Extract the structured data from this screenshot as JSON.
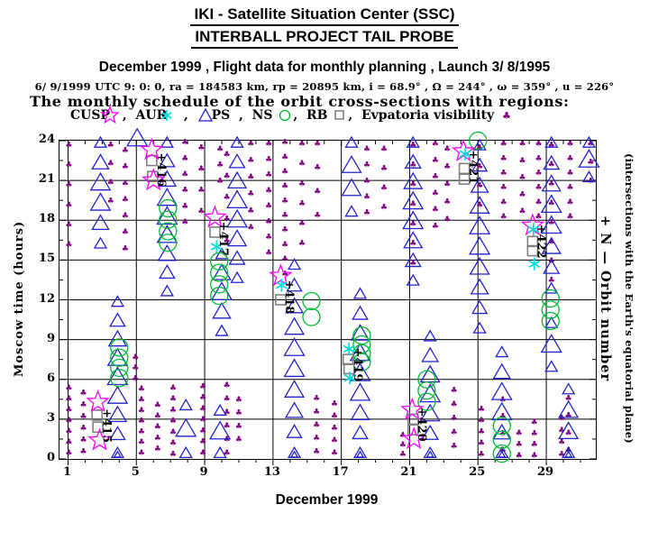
{
  "header": {
    "line1": "IKI - Satellite Situation Center (SSC)",
    "line2": "INTERBALL PROJECT TAIL PROBE",
    "line3": "December 1999 ,  Flight data for monthly planning ,  Launch  3/ 8/1995",
    "params": "6/ 9/1999 UTC  9: 0: 0, ra = 184583 km, rp =  20895 km, i = 68.9° , Ω = 244° , ω = 359° , u = 226°"
  },
  "legend": {
    "items": [
      {
        "label": "CUSP",
        "marker": "star",
        "color": "#ff00ff",
        "sep": " ,  ",
        "marker_first": false
      },
      {
        "label": "AUR",
        "marker": "asterisk",
        "color": "#00dddd",
        "sep": "  ,  ",
        "marker_first": false
      },
      {
        "label": "PS",
        "marker": "triangle",
        "color": "#2222cc",
        "sep": "  ,  ",
        "marker_first": true
      },
      {
        "label": "NS ",
        "marker": "circle",
        "color": "#00bb33",
        "sep": ",  ",
        "marker_first": false
      },
      {
        "label": "RB ",
        "marker": "square",
        "color": "#808080",
        "sep": ",  ",
        "marker_first": false
      },
      {
        "label": "Evpatoria visibility ",
        "marker": "club",
        "color": "#800080",
        "sep": "",
        "marker_first": false
      }
    ]
  },
  "plot": {
    "x_label": "December 1999",
    "y_label": "Moscow time (hours)",
    "right_label_inner": "+ N — Orbit number",
    "right_label_outer": "(intersections with the Earth's equatorial plane)"
  },
  "chart_data": {
    "type": "scatter",
    "title": "The monthly schedule of the orbit cross-sections with regions:",
    "xlabel": "December 1999",
    "ylabel": "Moscow time (hours)",
    "xlim": [
      0.5,
      31.9
    ],
    "ylim": [
      0,
      24
    ],
    "x_major_ticks": [
      1,
      5,
      9,
      13,
      17,
      21,
      25,
      29
    ],
    "x_minor_step": 1,
    "y_major_ticks": [
      0,
      3,
      6,
      9,
      12,
      15,
      18,
      21,
      24
    ],
    "y_minor_step": 1.5,
    "grid": true,
    "series": [
      {
        "name": "PS",
        "marker": "triangle",
        "color": "#2222cc",
        "columns": [
          [
            2.9,
            23.8,
            16.2,
            6,
            0
          ],
          [
            3.9,
            11.8,
            0.4,
            9,
            1
          ],
          [
            5.05,
            24.1,
            24.1,
            1,
            0
          ],
          [
            6.8,
            23.8,
            12.6,
            9,
            0
          ],
          [
            7.9,
            4.0,
            0.4,
            3,
            0
          ],
          [
            10.0,
            15.4,
            9.6,
            5,
            0
          ],
          [
            9.9,
            3.6,
            0.4,
            3,
            0
          ],
          [
            10.9,
            23.8,
            13.6,
            8,
            0
          ],
          [
            14.25,
            14.6,
            0.4,
            10,
            1
          ],
          [
            17.6,
            23.8,
            18.6,
            4,
            0
          ],
          [
            18.1,
            12.4,
            0.4,
            9,
            1
          ],
          [
            21.2,
            23.8,
            13.4,
            8,
            0
          ],
          [
            22.2,
            9.2,
            0.4,
            7,
            1
          ],
          [
            25.1,
            23.6,
            9.8,
            10,
            0
          ],
          [
            26.4,
            8.0,
            0.4,
            6,
            1
          ],
          [
            29.3,
            23.8,
            12.8,
            8,
            0
          ],
          [
            29.3,
            10.2,
            6.9,
            3,
            0
          ],
          [
            30.3,
            5.2,
            0.4,
            4,
            1
          ],
          [
            31.5,
            23.8,
            21.2,
            3,
            0
          ]
        ]
      },
      {
        "name": "NS",
        "marker": "circle",
        "color": "#00bb33",
        "stacks": [
          [
            4.0,
            8.4,
            6.1,
            4
          ],
          [
            6.85,
            18.9,
            16.3,
            4
          ],
          [
            9.85,
            14.9,
            12.3,
            4
          ],
          [
            15.25,
            11.9,
            10.7,
            2
          ],
          [
            18.2,
            9.3,
            7.3,
            4
          ],
          [
            22.0,
            6.0,
            4.3,
            3
          ],
          [
            25.0,
            24.0,
            23.7,
            1
          ],
          [
            26.4,
            2.5,
            0.4,
            3
          ],
          [
            29.25,
            12.1,
            10.4,
            3
          ]
        ]
      },
      {
        "name": "RB",
        "marker": "square",
        "color": "#808080",
        "points": [
          [
            2.7,
            3.3
          ],
          [
            2.75,
            2.4
          ],
          [
            5.9,
            22.5
          ],
          [
            5.95,
            21.3
          ],
          [
            9.6,
            17.1
          ],
          [
            13.45,
            12.0
          ],
          [
            17.4,
            7.5
          ],
          [
            17.45,
            6.8
          ],
          [
            21.2,
            3.0
          ],
          [
            21.2,
            2.2
          ],
          [
            24.2,
            21.9
          ],
          [
            24.2,
            21.1
          ],
          [
            28.2,
            16.4
          ],
          [
            28.2,
            15.7
          ]
        ]
      },
      {
        "name": "CUSP",
        "marker": "star",
        "color": "#ff00ff",
        "points": [
          [
            2.75,
            4.3
          ],
          [
            2.85,
            1.4
          ],
          [
            5.9,
            23.3
          ],
          [
            6.0,
            21.0
          ],
          [
            9.6,
            18.2
          ],
          [
            13.45,
            13.8
          ],
          [
            21.15,
            3.7
          ],
          [
            21.25,
            1.5
          ],
          [
            24.15,
            23.2
          ],
          [
            28.2,
            17.6
          ]
        ]
      },
      {
        "name": "AUR",
        "marker": "asterisk",
        "color": "#00dddd",
        "points": [
          [
            9.7,
            16.0
          ],
          [
            13.5,
            13.1
          ],
          [
            17.45,
            8.3
          ],
          [
            17.5,
            6.1
          ],
          [
            24.25,
            23.0
          ],
          [
            28.25,
            17.3
          ],
          [
            28.3,
            14.7
          ]
        ]
      },
      {
        "name": "Evpatoria visibility",
        "marker": "club",
        "color": "#800080",
        "columns": [
          [
            1.05,
            23.7,
            16.2,
            6
          ],
          [
            1.05,
            5.4,
            0.5,
            7
          ],
          [
            1.9,
            5.0,
            0.6,
            6
          ],
          [
            3.5,
            23.7,
            19.5,
            4
          ],
          [
            4.35,
            23.3,
            15.9,
            7
          ],
          [
            4.95,
            7.7,
            6.1,
            3
          ],
          [
            5.3,
            5.3,
            0.5,
            7
          ],
          [
            6.25,
            4.1,
            0.8,
            5
          ],
          [
            7.15,
            5.4,
            0.4,
            7
          ],
          [
            7.85,
            23.9,
            17.9,
            6
          ],
          [
            8.8,
            23.5,
            18.7,
            4
          ],
          [
            8.9,
            5.5,
            0.5,
            7
          ],
          [
            9.9,
            23.4,
            21.0,
            3
          ],
          [
            10.3,
            23.0,
            16.5,
            5
          ],
          [
            10.3,
            5.6,
            0.5,
            6
          ],
          [
            11.0,
            4.5,
            1.5,
            4
          ],
          [
            11.7,
            23.8,
            17.5,
            6
          ],
          [
            12.75,
            23.8,
            15.6,
            8
          ],
          [
            13.7,
            23.9,
            14.0,
            10
          ],
          [
            14.7,
            23.8,
            16.3,
            6
          ],
          [
            15.6,
            23.8,
            18.4,
            4
          ],
          [
            15.55,
            4.6,
            0.6,
            5
          ],
          [
            16.6,
            4.2,
            0.5,
            5
          ],
          [
            18.5,
            23.4,
            18.6,
            5
          ],
          [
            19.5,
            23.4,
            19.0,
            4
          ],
          [
            20.6,
            1.8,
            0.4,
            3
          ],
          [
            22.5,
            23.8,
            17.6,
            6
          ],
          [
            23.2,
            23.4,
            18.1,
            5
          ],
          [
            23.6,
            5.2,
            1.0,
            5
          ],
          [
            25.2,
            3.8,
            0.4,
            5
          ],
          [
            26.5,
            23.8,
            18.3,
            6
          ],
          [
            27.6,
            23.8,
            18.7,
            5
          ],
          [
            27.4,
            2.0,
            0.3,
            3
          ],
          [
            28.3,
            2.8,
            0.3,
            4
          ],
          [
            28.55,
            23.8,
            18.3,
            6
          ],
          [
            29.9,
            3.1,
            0.4,
            4
          ],
          [
            30.4,
            23.8,
            18.3,
            6
          ],
          [
            31.6,
            23.8,
            21.0,
            3
          ],
          [
            21.2,
            23.7,
            14.8,
            7
          ],
          [
            25.1,
            23.5,
            19.2,
            4
          ],
          [
            29.3,
            23.7,
            13.5,
            8
          ],
          [
            30.3,
            4.6,
            0.7,
            4
          ],
          [
            26.45,
            4.5,
            0.7,
            4
          ]
        ]
      },
      {
        "name": "orbit_numbers",
        "marker": "text",
        "color": "#000000",
        "labels": [
          [
            3.05,
            3.8,
            "+415"
          ],
          [
            6.25,
            23.1,
            "+416"
          ],
          [
            9.9,
            17.9,
            "+417"
          ],
          [
            13.75,
            13.5,
            "+418"
          ],
          [
            17.75,
            8.4,
            "+419"
          ],
          [
            21.5,
            3.9,
            "+420"
          ],
          [
            24.5,
            23.3,
            "+421"
          ],
          [
            28.5,
            17.7,
            "+422"
          ]
        ]
      }
    ]
  }
}
